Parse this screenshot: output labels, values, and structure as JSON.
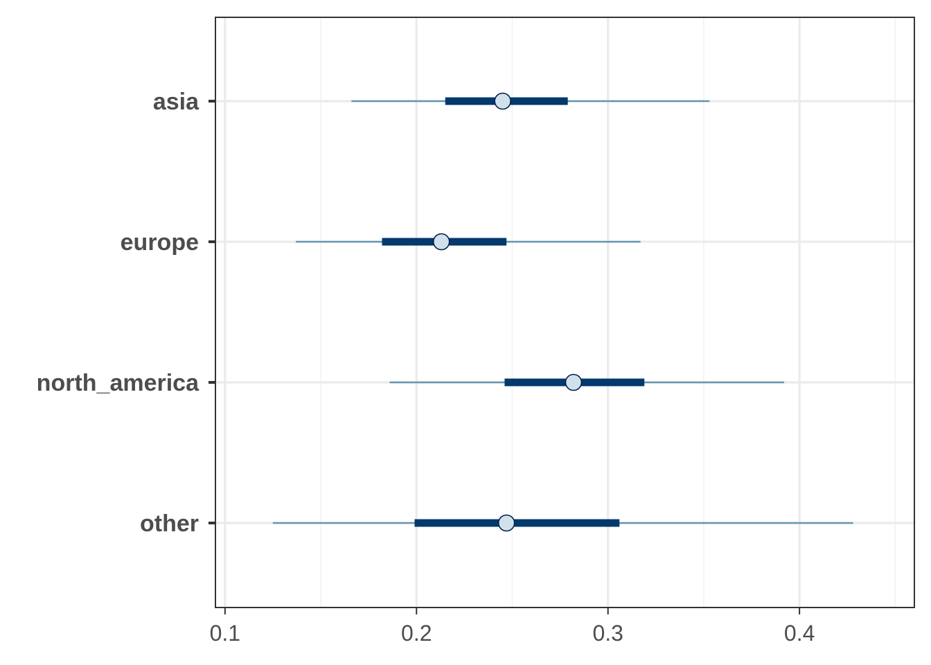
{
  "colors": {
    "background": "#ffffff",
    "panel_border": "#333333",
    "grid_major": "#ebebeb",
    "grid_minor": "#f2f2f2",
    "outer_interval": "#6497b1",
    "inner_interval": "#03396c",
    "point_fill": "#d1e1ec",
    "point_stroke": "#011f4b",
    "tick_label": "#4d4d4d"
  },
  "chart_data": {
    "type": "interval",
    "title": "",
    "xlabel": "",
    "ylabel": "",
    "xlim": [
      0.095,
      0.46
    ],
    "x_ticks": [
      0.1,
      0.2,
      0.3,
      0.4
    ],
    "x_tick_labels": [
      "0.1",
      "0.2",
      "0.3",
      "0.4"
    ],
    "x_minor_ticks": [
      0.15,
      0.25,
      0.35,
      0.45
    ],
    "grid": true,
    "categories": [
      "asia",
      "europe",
      "north_america",
      "other"
    ],
    "series": [
      {
        "category": "asia",
        "point": 0.245,
        "inner_interval": [
          0.215,
          0.279
        ],
        "outer_interval": [
          0.166,
          0.353
        ]
      },
      {
        "category": "europe",
        "point": 0.213,
        "inner_interval": [
          0.182,
          0.247
        ],
        "outer_interval": [
          0.137,
          0.317
        ]
      },
      {
        "category": "north_america",
        "point": 0.282,
        "inner_interval": [
          0.246,
          0.319
        ],
        "outer_interval": [
          0.186,
          0.392
        ]
      },
      {
        "category": "other",
        "point": 0.247,
        "inner_interval": [
          0.199,
          0.306
        ],
        "outer_interval": [
          0.125,
          0.428
        ]
      }
    ]
  }
}
